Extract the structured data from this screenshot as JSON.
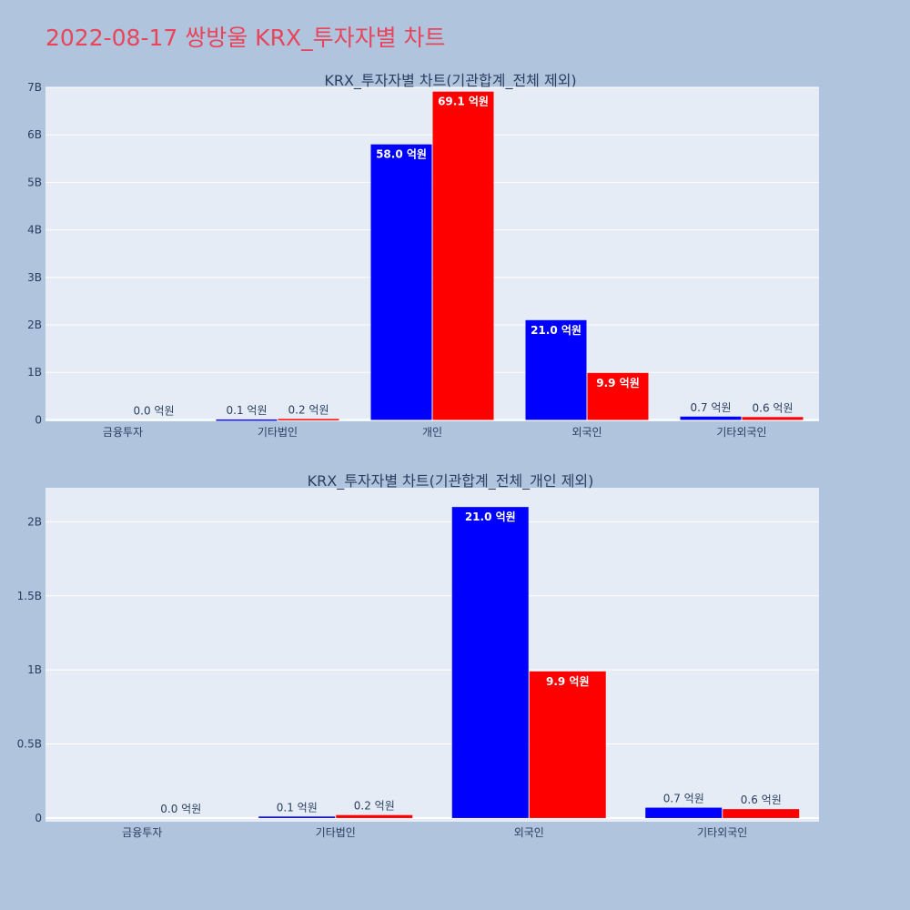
{
  "title": "2022-08-17 쌍방울 KRX_투자자별 차트",
  "colors": {
    "series_a": "#0000ff",
    "series_b": "#ff0000",
    "title": "#e8455a",
    "background": "#b0c4de",
    "plot": "#e5ecf6"
  },
  "chart_data": [
    {
      "type": "bar",
      "title": "KRX_투자자별 차트(기관합계_전체 제외)",
      "categories": [
        "금융투자",
        "기타법인",
        "개인",
        "외국인",
        "기타외국인"
      ],
      "series": [
        {
          "values": [
            0,
            10000000,
            5800000000,
            2100000000,
            70000000
          ],
          "labels": [
            "",
            "0.1 억원",
            "58.0 억원",
            "21.0 억원",
            "0.7 억원"
          ]
        },
        {
          "values": [
            0,
            20000000,
            6910000000,
            990000000,
            60000000
          ],
          "labels": [
            "0.0 억원",
            "0.2 억원",
            "69.1 억원",
            "9.9 억원",
            "0.6 억원"
          ]
        }
      ],
      "yticks": [
        "0",
        "1B",
        "2B",
        "3B",
        "4B",
        "5B",
        "6B",
        "7B"
      ],
      "ytick_values": [
        0,
        1000000000,
        2000000000,
        3000000000,
        4000000000,
        5000000000,
        6000000000,
        7000000000
      ],
      "ylim": [
        -30000000,
        7000000000
      ],
      "grid": true
    },
    {
      "type": "bar",
      "title": "KRX_투자자별 차트(기관합계_전체_개인 제외)",
      "categories": [
        "금융투자",
        "기타법인",
        "외국인",
        "기타외국인"
      ],
      "series": [
        {
          "values": [
            0,
            10000000,
            2100000000,
            70000000
          ],
          "labels": [
            "",
            "0.1 억원",
            "21.0 억원",
            "0.7 억원"
          ]
        },
        {
          "values": [
            0,
            20000000,
            990000000,
            60000000
          ],
          "labels": [
            "0.0 억원",
            "0.2 억원",
            "9.9 억원",
            "0.6 억원"
          ]
        }
      ],
      "yticks": [
        "0",
        "0.5B",
        "1B",
        "1.5B",
        "2B"
      ],
      "ytick_values": [
        0,
        500000000,
        1000000000,
        1500000000,
        2000000000
      ],
      "ylim": [
        -25000000,
        2230000000
      ],
      "grid": true
    }
  ]
}
